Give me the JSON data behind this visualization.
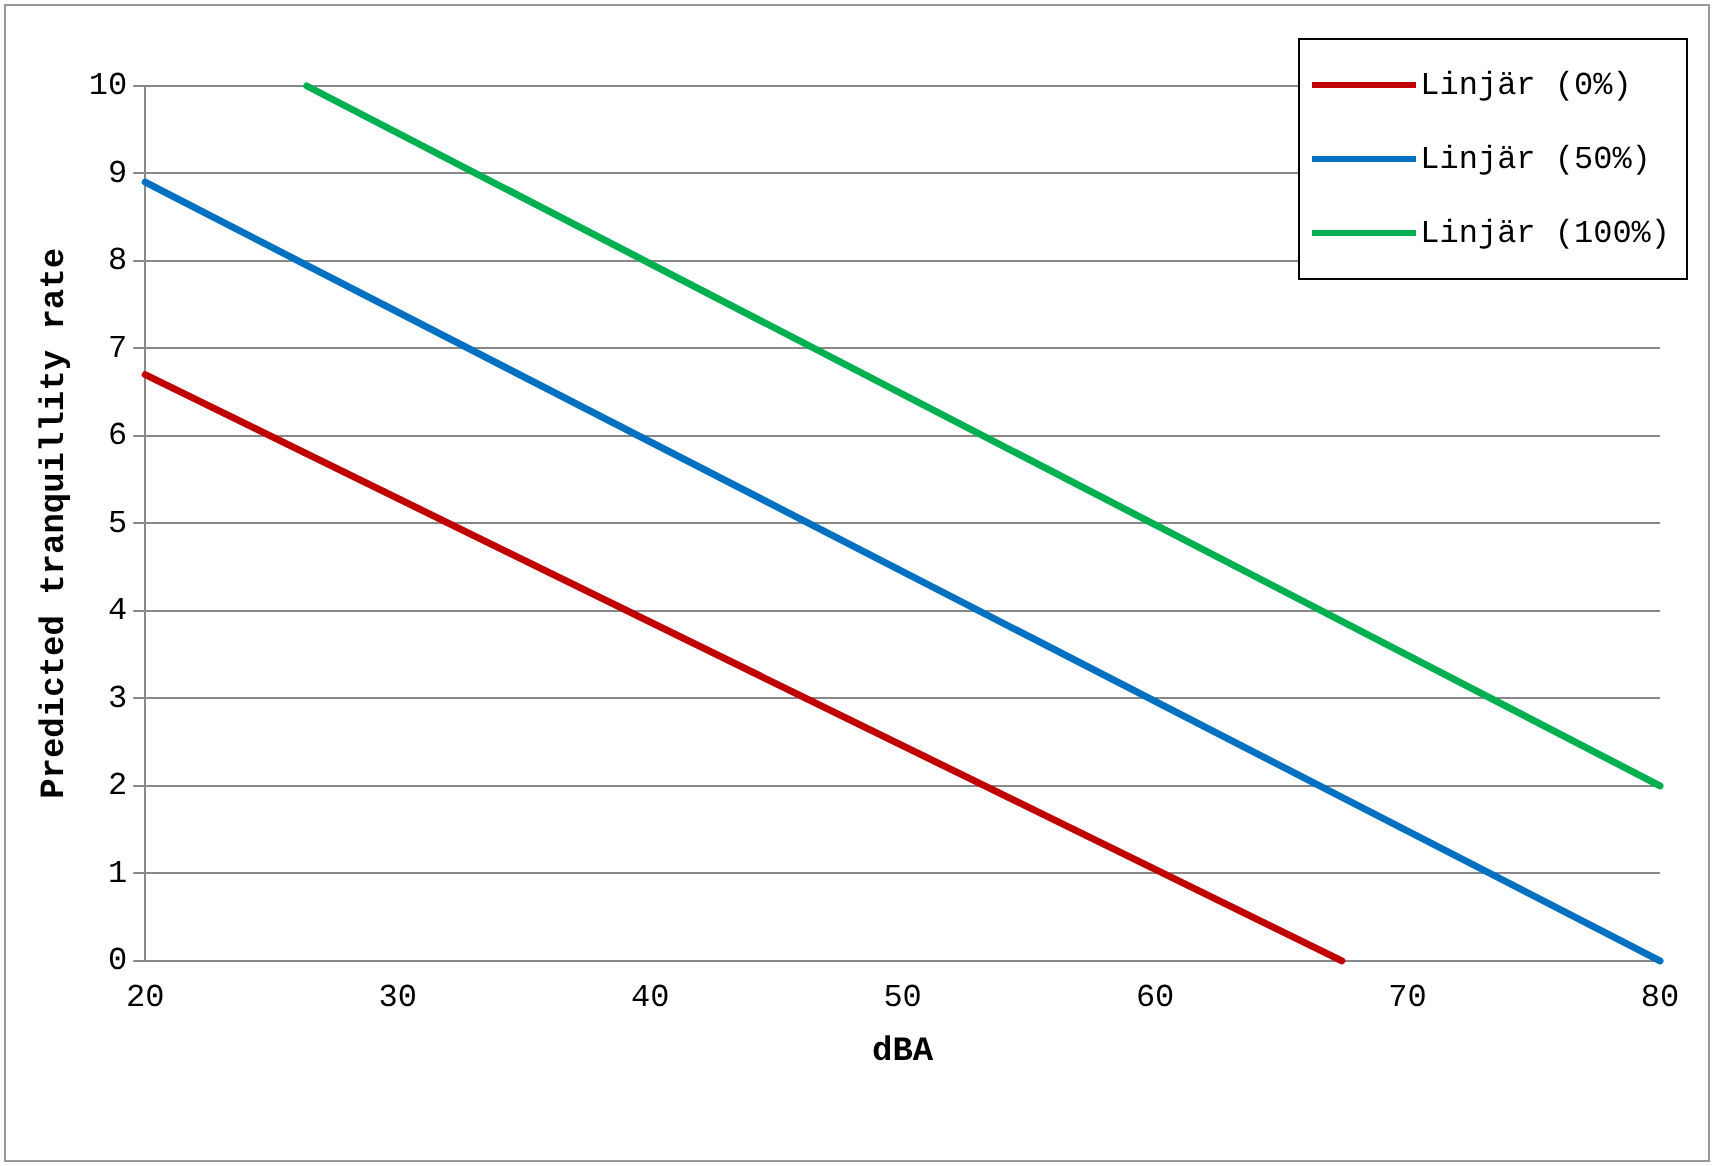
{
  "chart_data": {
    "type": "line",
    "xlabel": "dBA",
    "ylabel": "Predicted tranquillity rate",
    "xlim": [
      20,
      80
    ],
    "xticks": [
      20,
      30,
      40,
      50,
      60,
      70,
      80
    ],
    "ylim": [
      0,
      10
    ],
    "yticks": [
      0,
      1,
      2,
      3,
      4,
      5,
      6,
      7,
      8,
      9,
      10
    ],
    "grid": "y",
    "legend": "top right",
    "marker": "none",
    "line_style": "solid",
    "series": [
      {
        "name": "Linjär (0%)",
        "color": "#c00000",
        "x": [
          20,
          67.4
        ],
        "values": [
          6.7,
          0
        ]
      },
      {
        "name": "Linjär (50%)",
        "color": "#0070c0",
        "x": [
          20,
          80
        ],
        "values": [
          8.9,
          0
        ]
      },
      {
        "name": "Linjär (100%)",
        "color": "#00b050",
        "x": [
          26.4,
          80
        ],
        "values": [
          10,
          2
        ]
      }
    ]
  }
}
